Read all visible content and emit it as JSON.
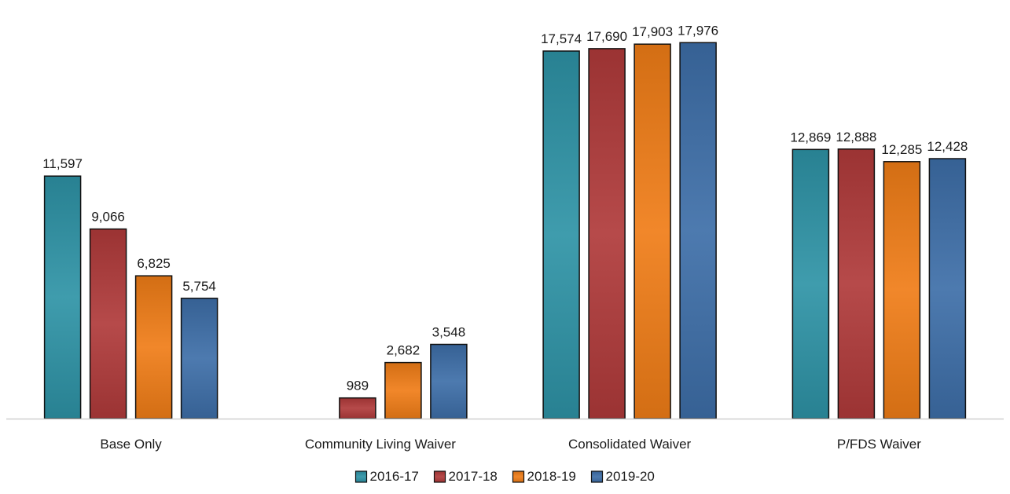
{
  "chart_data": {
    "type": "bar",
    "title": "",
    "xlabel": "",
    "ylabel": "",
    "categories": [
      "Base Only",
      "Community Living Waiver",
      "Consolidated Waiver",
      "P/FDS Waiver"
    ],
    "series": [
      {
        "name": "2016-17",
        "color": "#2e93a6",
        "values": [
          11597,
          null,
          17574,
          12869
        ],
        "labels": [
          "11,597",
          "",
          "17,574",
          "12,869"
        ]
      },
      {
        "name": "2017-18",
        "color": "#b03a3a",
        "values": [
          9066,
          989,
          17690,
          12888
        ],
        "labels": [
          "9,066",
          "989",
          "17,690",
          "12,888"
        ]
      },
      {
        "name": "2018-19",
        "color": "#f07d17",
        "values": [
          6825,
          2682,
          17903,
          12285
        ],
        "labels": [
          "6,825",
          "2,682",
          "17,903",
          "12,285"
        ]
      },
      {
        "name": "2019-20",
        "color": "#3d6ea8",
        "values": [
          5754,
          3548,
          17976,
          12428
        ],
        "labels": [
          "5,754",
          "3,548",
          "17,976",
          "12,428"
        ]
      }
    ],
    "ylim": [
      0,
      19000
    ],
    "grid": false,
    "legend_position": "bottom"
  }
}
